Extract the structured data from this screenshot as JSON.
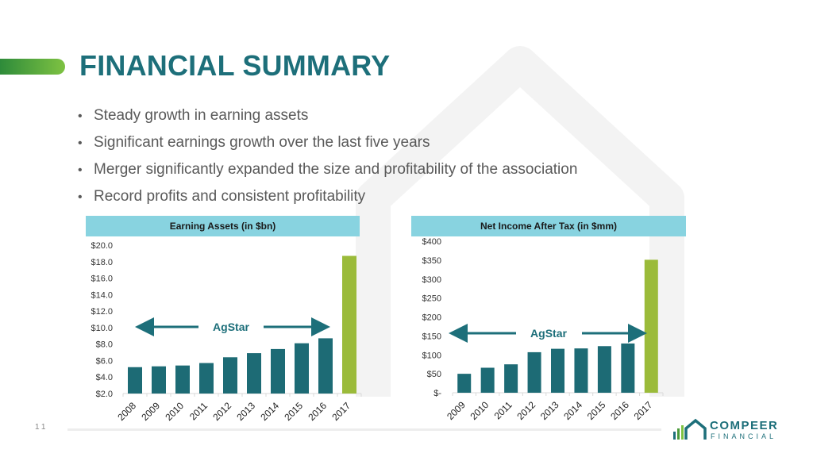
{
  "slide": {
    "title": "FINANCIAL SUMMARY",
    "page_number": "11",
    "bullets": [
      "Steady growth in earning assets",
      "Significant earnings growth over the last five years",
      "Merger significantly expanded the size and profitability of the association",
      "Record profits and consistent profitability"
    ]
  },
  "logo": {
    "word1": "COMPEER",
    "word2": "FINANCIAL"
  },
  "colors": {
    "title": "#1d6f7a",
    "bar": "#1d6b75",
    "highlight": "#9bbb3a",
    "header": "#88d3e0"
  },
  "chart_data": [
    {
      "type": "bar",
      "title": "Earning Assets (in $bn)",
      "categories": [
        "2008",
        "2009",
        "2010",
        "2011",
        "2012",
        "2013",
        "2014",
        "2015",
        "2016",
        "2017"
      ],
      "values": [
        5.2,
        5.3,
        5.4,
        5.7,
        6.4,
        6.9,
        7.4,
        8.1,
        8.7,
        18.7
      ],
      "highlight_index": 9,
      "ylim": [
        2,
        20
      ],
      "yticks": [
        2,
        4,
        6,
        8,
        10,
        12,
        14,
        16,
        18,
        20
      ],
      "ytick_labels": [
        "$2.0",
        "$4.0",
        "$6.0",
        "$8.0",
        "$10.0",
        "$12.0",
        "$14.0",
        "$16.0",
        "$18.0",
        "$20.0"
      ],
      "annotation": "AgStar",
      "annotation_value": 10
    },
    {
      "type": "bar",
      "title": "Net Income After Tax (in $mm)",
      "categories": [
        "2009",
        "2010",
        "2011",
        "2012",
        "2013",
        "2014",
        "2015",
        "2016",
        "2017"
      ],
      "values": [
        50,
        66,
        75,
        107,
        116,
        117,
        123,
        130,
        351
      ],
      "highlight_index": 8,
      "ylim": [
        0,
        400
      ],
      "yticks": [
        0,
        50,
        100,
        150,
        200,
        250,
        300,
        350,
        400
      ],
      "ytick_labels": [
        "$-",
        "$50",
        "$100",
        "$150",
        "$200",
        "$250",
        "$300",
        "$350",
        "$400"
      ],
      "annotation": "AgStar",
      "annotation_value": 157
    }
  ]
}
